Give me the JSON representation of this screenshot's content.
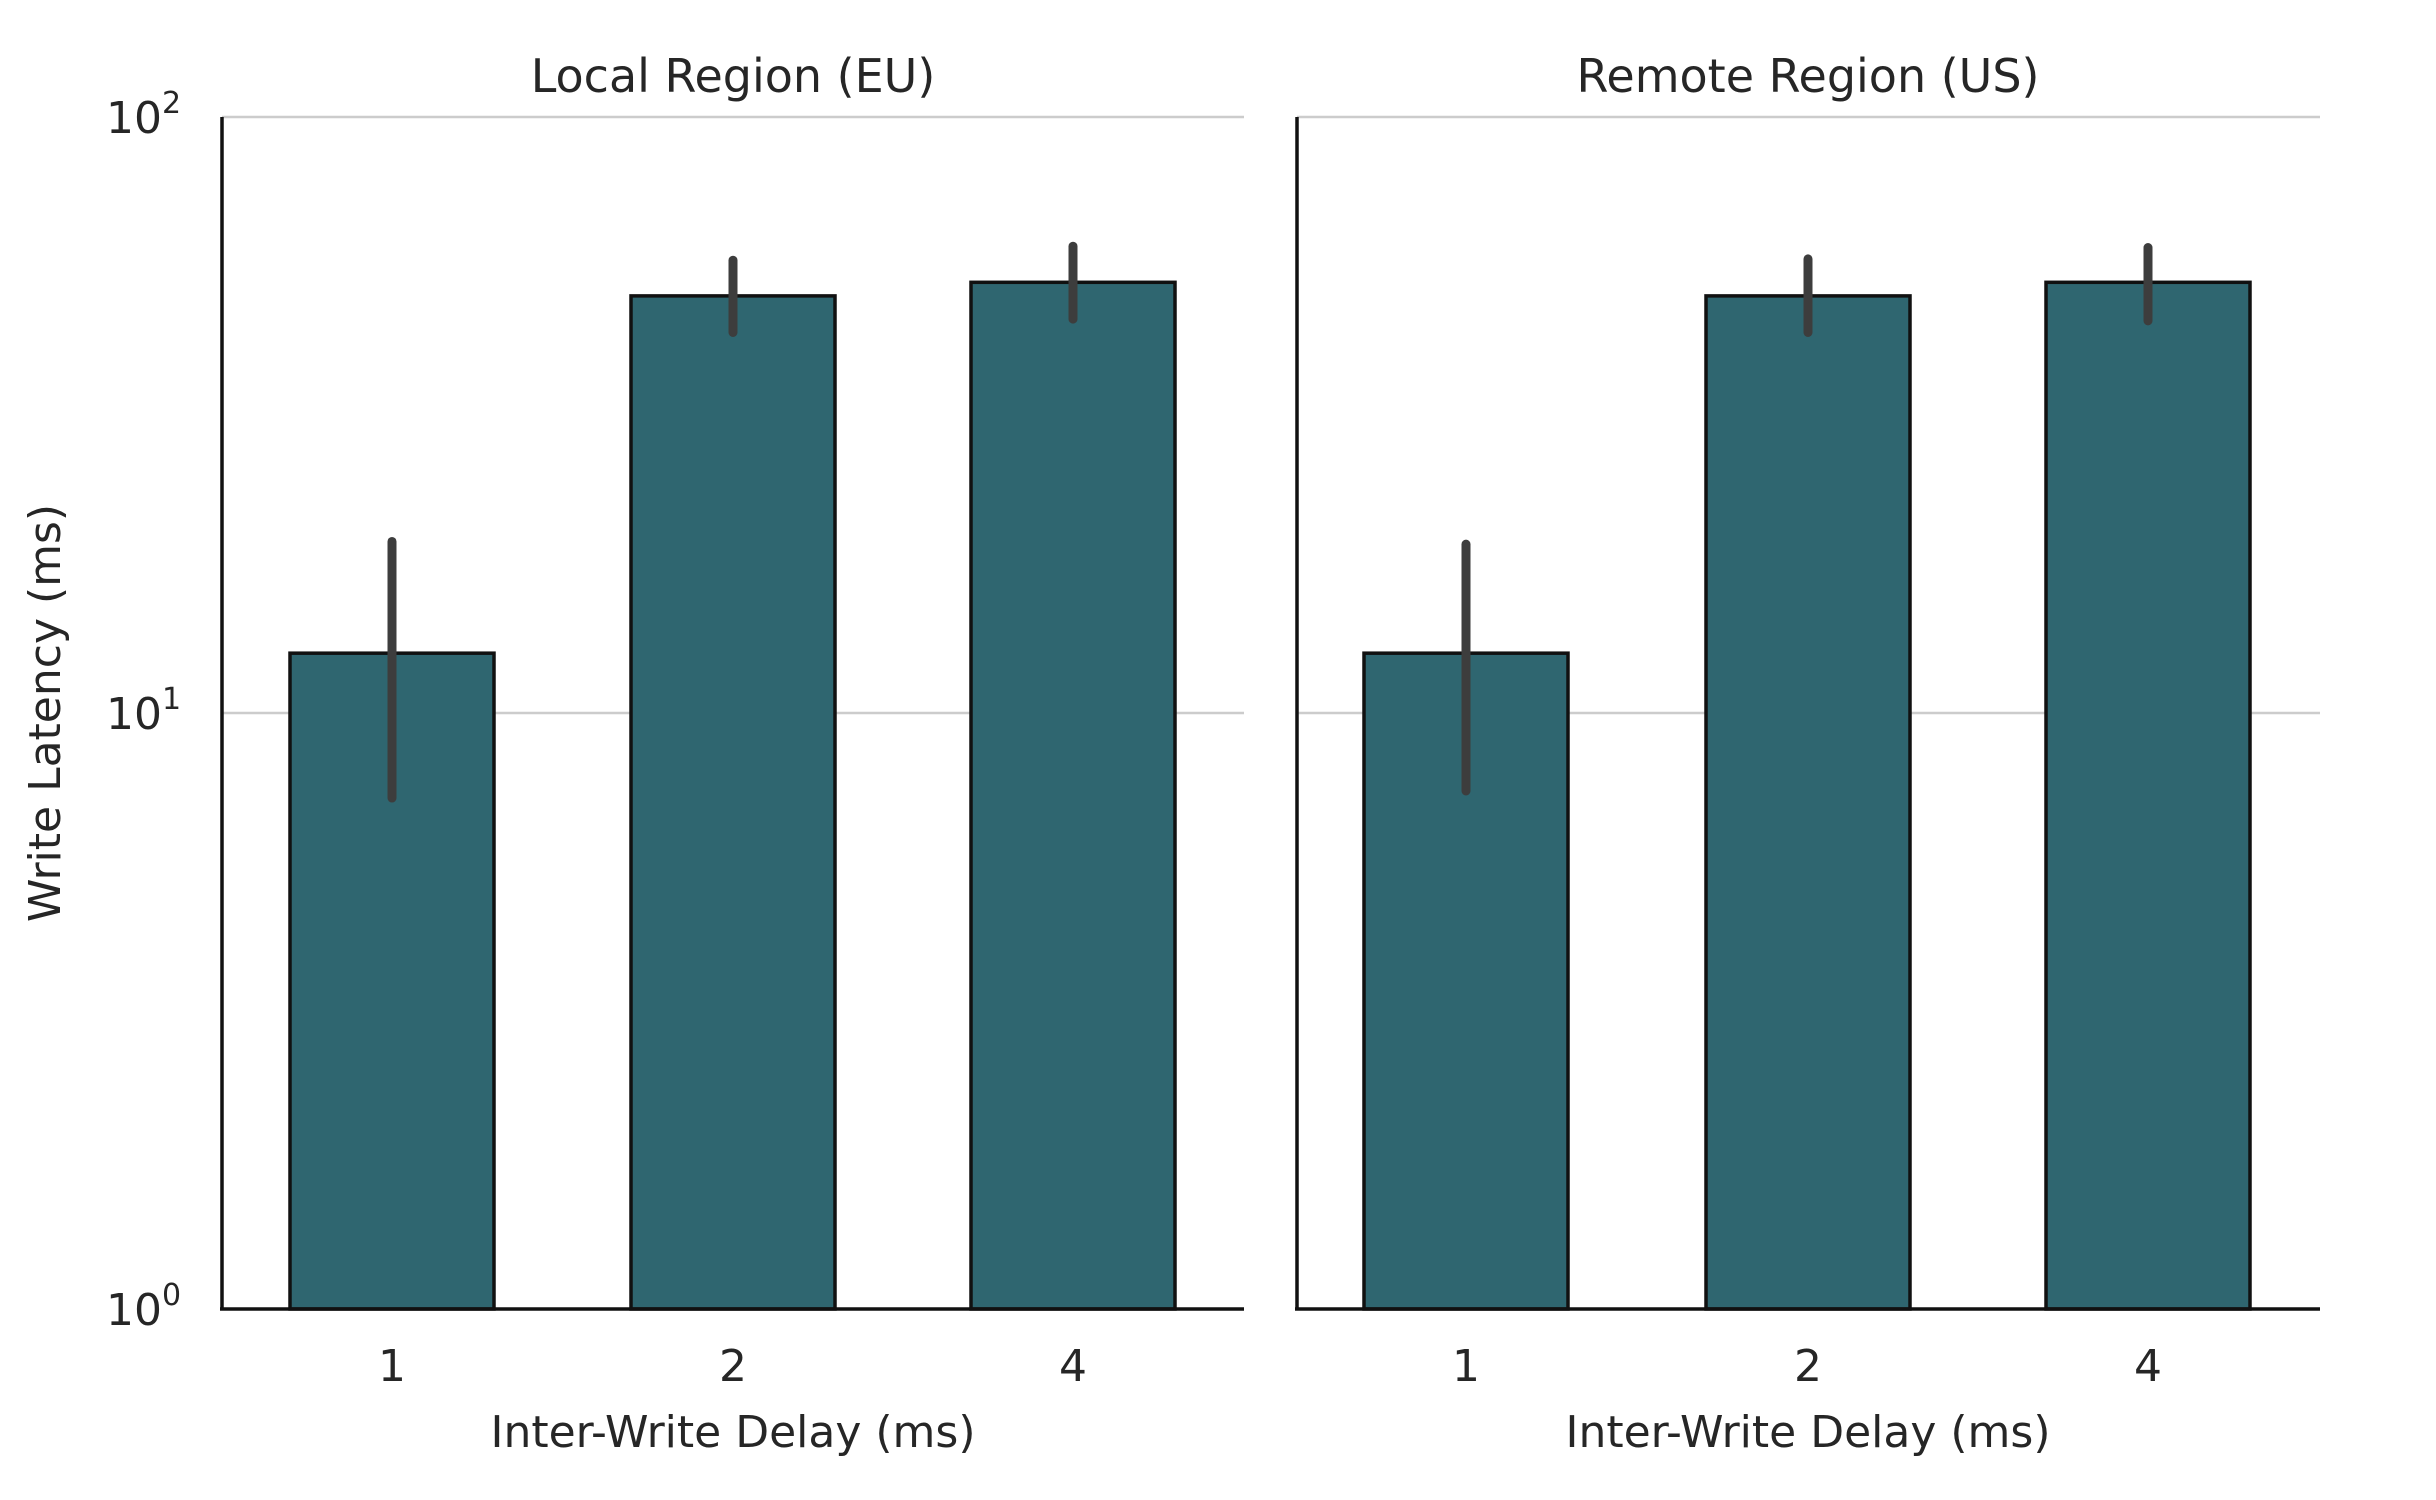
{
  "chart_data": {
    "type": "bar",
    "y_scale": "log",
    "ylim": [
      1,
      100
    ],
    "ylabel": "Write Latency (ms)",
    "ytick_labels": [
      {
        "value": 1,
        "base": "10",
        "exp": "0"
      },
      {
        "value": 10,
        "base": "10",
        "exp": "1"
      },
      {
        "value": 100,
        "base": "10",
        "exp": "2"
      }
    ],
    "grid": "horizontal",
    "bar_color": "#2f6670",
    "panels": [
      {
        "title": "Local Region (EU)",
        "xlabel": "Inter-Write Delay (ms)",
        "categories": [
          "1",
          "2",
          "4"
        ],
        "values": [
          12.6,
          50.1,
          52.8
        ],
        "error_low": [
          7.2,
          43.5,
          45.8
        ],
        "error_high": [
          19.4,
          57.5,
          60.7
        ]
      },
      {
        "title": "Remote Region (US)",
        "xlabel": "Inter-Write Delay (ms)",
        "categories": [
          "1",
          "2",
          "4"
        ],
        "values": [
          12.6,
          50.1,
          52.8
        ],
        "error_low": [
          7.4,
          43.5,
          45.5
        ],
        "error_high": [
          19.2,
          57.8,
          60.4
        ]
      }
    ]
  }
}
